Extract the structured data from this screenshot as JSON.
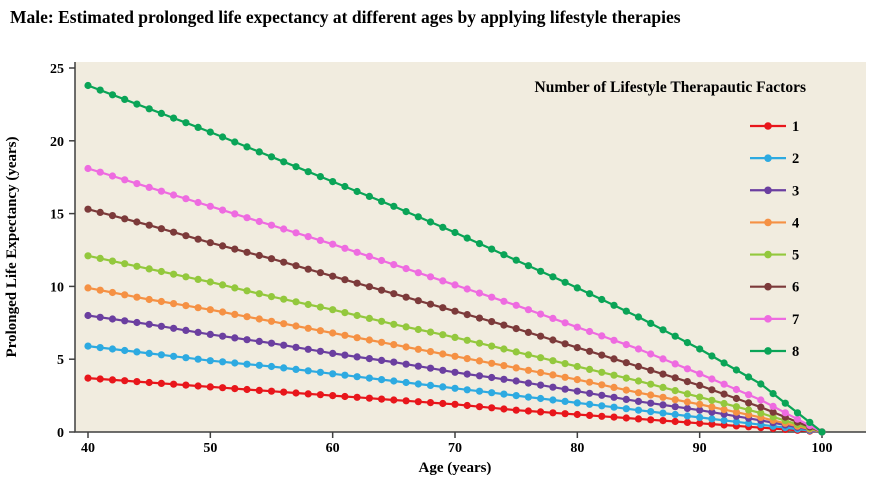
{
  "chart_data": {
    "type": "line",
    "title": "Male: Estimated prolonged life expectancy at different ages by applying lifestyle therapies",
    "x_label": "Age (years)",
    "y_label": "Prolonged Life Expectancy (years)",
    "legend_title": "Number of Lifestyle Therapautic Factors",
    "legend_position": "inside-top-right",
    "grid": false,
    "marker": "circle",
    "marker_interval_years": 1,
    "plot_bg": "#f1ecdf",
    "axis_color": "#3f3f3f",
    "x_range": [
      40,
      100
    ],
    "y_range": [
      0,
      25
    ],
    "x_ticks": [
      40,
      50,
      60,
      70,
      80,
      90,
      100
    ],
    "y_ticks": [
      0,
      5,
      10,
      15,
      20,
      25
    ],
    "ages": [
      40,
      45,
      50,
      55,
      60,
      65,
      70,
      75,
      80,
      85,
      90,
      95,
      100
    ],
    "series": [
      {
        "name": "1",
        "color": "#e8161b",
        "values": [
          3.7,
          3.4,
          3.1,
          2.8,
          2.5,
          2.2,
          1.9,
          1.5,
          1.2,
          0.9,
          0.6,
          0.3,
          0
        ]
      },
      {
        "name": "2",
        "color": "#2daae1",
        "values": [
          5.9,
          5.4,
          4.9,
          4.5,
          4.0,
          3.5,
          3.0,
          2.5,
          2.0,
          1.5,
          1.0,
          0.5,
          0
        ]
      },
      {
        "name": "3",
        "color": "#6b3fa0",
        "values": [
          8.0,
          7.4,
          6.7,
          6.1,
          5.4,
          4.8,
          4.1,
          3.5,
          2.8,
          2.1,
          1.5,
          0.8,
          0
        ]
      },
      {
        "name": "4",
        "color": "#f59144",
        "values": [
          9.9,
          9.1,
          8.4,
          7.6,
          6.8,
          6.0,
          5.2,
          4.4,
          3.6,
          2.7,
          1.9,
          1.0,
          0
        ]
      },
      {
        "name": "5",
        "color": "#93c83d",
        "values": [
          12.1,
          11.2,
          10.3,
          9.3,
          8.4,
          7.4,
          6.5,
          5.5,
          4.5,
          3.5,
          2.4,
          1.3,
          0
        ]
      },
      {
        "name": "6",
        "color": "#7c3a3a",
        "values": [
          15.3,
          14.2,
          13.0,
          11.9,
          10.7,
          9.5,
          8.3,
          7.1,
          5.8,
          4.5,
          3.2,
          1.7,
          0
        ]
      },
      {
        "name": "7",
        "color": "#ee6be0",
        "values": [
          18.1,
          16.8,
          15.5,
          14.2,
          12.9,
          11.5,
          10.1,
          8.7,
          7.2,
          5.7,
          4.0,
          2.2,
          0
        ]
      },
      {
        "name": "8",
        "color": "#0aa457",
        "values": [
          23.8,
          22.2,
          20.6,
          18.9,
          17.2,
          15.5,
          13.7,
          11.8,
          9.9,
          7.9,
          5.7,
          3.3,
          0
        ]
      }
    ]
  }
}
